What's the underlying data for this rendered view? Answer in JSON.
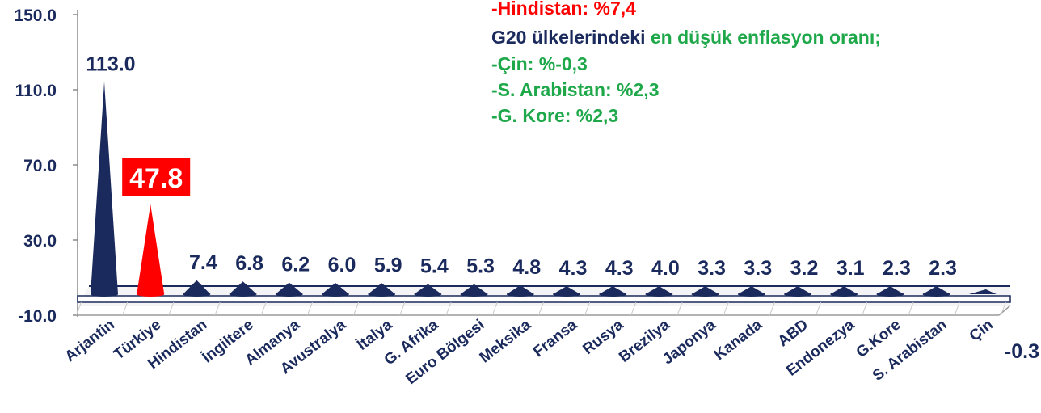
{
  "chart_data": {
    "type": "bar",
    "categories": [
      "Arjantin",
      "Türkiye",
      "Hindistan",
      "İngiltere",
      "Almanya",
      "Avustralya",
      "İtalya",
      "G. Afrika",
      "Euro Bölgesi",
      "Meksika",
      "Fransa",
      "Rusya",
      "Brezilya",
      "Japonya",
      "Kanada",
      "ABD",
      "Endonezya",
      "G.Kore",
      "S. Arabistan",
      "Çin"
    ],
    "values": [
      113.0,
      47.8,
      7.4,
      6.8,
      6.2,
      6.0,
      5.9,
      5.4,
      5.3,
      4.8,
      4.3,
      4.3,
      4.0,
      3.3,
      3.3,
      3.2,
      3.1,
      2.3,
      2.3,
      -0.3
    ],
    "value_labels": [
      "113.0",
      "47.8",
      "7.4",
      "6.8",
      "6.2",
      "6.0",
      "5.9",
      "5.4",
      "5.3",
      "4.8",
      "4.3",
      "4.3",
      "4.0",
      "3.3",
      "3.3",
      "3.2",
      "3.1",
      "2.3",
      "2.3",
      "-0.3"
    ],
    "highlight_index": 1,
    "yticks": [
      "150.0",
      "110.0",
      "70.0",
      "30.0",
      "-10.0"
    ],
    "ytick_values": [
      150,
      110,
      70,
      30,
      -10
    ],
    "ylim": [
      -10,
      150
    ],
    "title": "",
    "xlabel": "",
    "ylabel": "",
    "grid": false,
    "colors": {
      "bar": "#1b2a5c",
      "highlight": "#ff0000",
      "highlight_label_bg": "#ff0000",
      "text": "#1b2a5c",
      "green": "#1ea84a"
    }
  },
  "annotation": {
    "line1": "-Hindistan: %7,4",
    "line2_part1": "G20 ülkelerindeki ",
    "line2_part2": "en düşük enflasyon oranı;",
    "line3": "-Çin: %-0,3",
    "line4": "-S. Arabistan: %2,3",
    "line5": "-G. Kore: %2,3"
  }
}
